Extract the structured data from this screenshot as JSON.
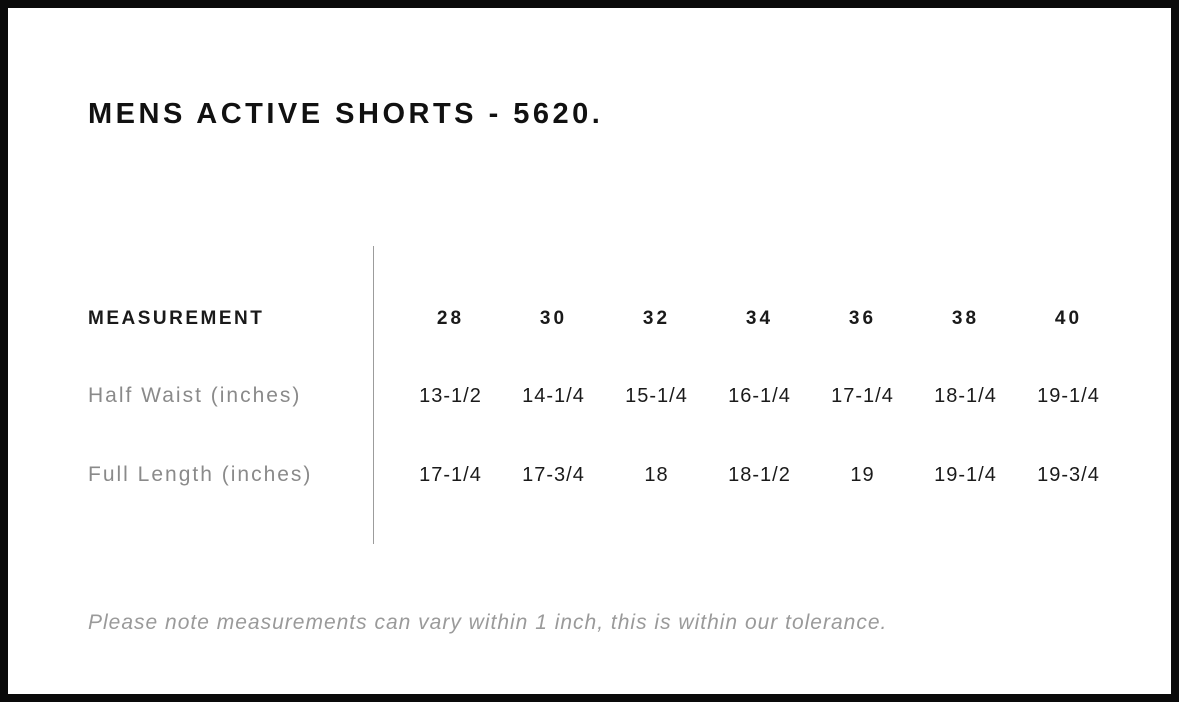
{
  "page": {
    "title": "MENS ACTIVE SHORTS - 5620.",
    "note": "Please note measurements can vary within 1 inch, this is within our tolerance."
  },
  "table": {
    "header_label": "MEASUREMENT",
    "sizes": [
      "28",
      "30",
      "32",
      "34",
      "36",
      "38",
      "40"
    ],
    "rows": [
      {
        "label": "Half Waist (inches)",
        "values": [
          "13-1/2",
          "14-1/4",
          "15-1/4",
          "16-1/4",
          "17-1/4",
          "18-1/4",
          "19-1/4"
        ]
      },
      {
        "label": "Full Length (inches)",
        "values": [
          "17-1/4",
          "17-3/4",
          "18",
          "18-1/2",
          "19",
          "19-1/4",
          "19-3/4"
        ]
      }
    ]
  },
  "colors": {
    "frame_border": "#0a0a0a",
    "text": "#1a1a1a",
    "muted_label": "#8a8a8a",
    "note_gray": "#9a9a9a",
    "divider": "#9c9c9c"
  }
}
